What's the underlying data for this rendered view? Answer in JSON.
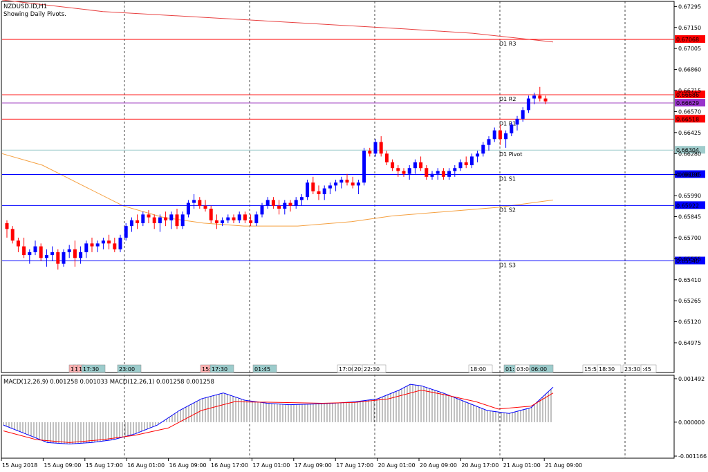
{
  "header": {
    "symbol": "NZDUSD.ID,H1",
    "subtitle": "Showing Daily Pivots."
  },
  "chart_data": {
    "type": "candlestick",
    "symbol": "NZDUSD.ID",
    "timeframe": "H1",
    "price_axis": {
      "range": [
        0.6477,
        0.6733
      ],
      "ticks": [
        "0.67295",
        "0.67150",
        "0.67005",
        "0.66860",
        "0.66715",
        "0.66570",
        "0.66425",
        "0.66280",
        "0.66135",
        "0.65990",
        "0.65845",
        "0.65700",
        "0.65555",
        "0.65410",
        "0.65265",
        "0.65120",
        "0.64975"
      ]
    },
    "pivots": [
      {
        "label": "D1 R3",
        "price": 0.67068,
        "value_text": "0.67068",
        "color": "#ff0000",
        "tag_bg": "#ff0000"
      },
      {
        "label": "D1 R2",
        "price": 0.66686,
        "value_text": "0.66686",
        "color": "#ff0000",
        "tag_bg": "#ff0000"
      },
      {
        "label": "",
        "price": 0.66629,
        "value_text": "0.66629",
        "color": "#a040c0",
        "tag_bg": "#9933cc"
      },
      {
        "label": "D1 R1",
        "price": 0.66518,
        "value_text": "0.66518",
        "color": "#ff0000",
        "tag_bg": "#ff0000"
      },
      {
        "label": "D1 Pivot",
        "price": 0.66304,
        "value_text": "0.66304",
        "color": "#9ccccc",
        "tag_bg": "#a0cccc"
      },
      {
        "label": "D1 S1",
        "price": 0.66136,
        "value_text": "0.66136",
        "color": "#0000ff",
        "tag_bg": "#0000ff"
      },
      {
        "label": "D1 S2",
        "price": 0.65922,
        "value_text": "0.65922",
        "color": "#0000ff",
        "tag_bg": "#0000ff"
      },
      {
        "label": "D1 S3",
        "price": 0.6554,
        "value_text": "0.65540",
        "color": "#0000ff",
        "tag_bg": "#0000ff"
      }
    ],
    "moving_average_red": [
      [
        0.0,
        0.6734
      ],
      [
        0.15,
        0.6726
      ],
      [
        0.3,
        0.6722
      ],
      [
        0.45,
        0.6718
      ],
      [
        0.6,
        0.6714
      ],
      [
        0.7,
        0.6711
      ],
      [
        0.8,
        0.6706
      ],
      [
        0.82,
        0.6705
      ]
    ],
    "moving_average_orange": [
      [
        0.0,
        0.6628
      ],
      [
        0.06,
        0.662
      ],
      [
        0.12,
        0.6606
      ],
      [
        0.18,
        0.6592
      ],
      [
        0.24,
        0.6584
      ],
      [
        0.3,
        0.658
      ],
      [
        0.36,
        0.6578
      ],
      [
        0.44,
        0.6578
      ],
      [
        0.52,
        0.6581
      ],
      [
        0.58,
        0.6585
      ],
      [
        0.66,
        0.6588
      ],
      [
        0.74,
        0.6591
      ],
      [
        0.82,
        0.6596
      ]
    ],
    "candles": [
      [
        0.658,
        0.6582,
        0.657,
        0.6576
      ],
      [
        0.6576,
        0.6578,
        0.6566,
        0.6568
      ],
      [
        0.6568,
        0.657,
        0.656,
        0.6564
      ],
      [
        0.6564,
        0.657,
        0.6556,
        0.6558
      ],
      [
        0.6558,
        0.6562,
        0.6552,
        0.656
      ],
      [
        0.656,
        0.6568,
        0.6558,
        0.6564
      ],
      [
        0.6564,
        0.6566,
        0.6554,
        0.6556
      ],
      [
        0.6556,
        0.6562,
        0.655,
        0.6558
      ],
      [
        0.6558,
        0.6564,
        0.6554,
        0.656
      ],
      [
        0.656,
        0.6562,
        0.6548,
        0.6552
      ],
      [
        0.6552,
        0.6562,
        0.655,
        0.656
      ],
      [
        0.656,
        0.6565,
        0.6556,
        0.6562
      ],
      [
        0.6562,
        0.6568,
        0.655,
        0.6556
      ],
      [
        0.6556,
        0.6564,
        0.6552,
        0.656
      ],
      [
        0.656,
        0.6568,
        0.6556,
        0.6566
      ],
      [
        0.6566,
        0.657,
        0.656,
        0.6564
      ],
      [
        0.6564,
        0.6568,
        0.656,
        0.6566
      ],
      [
        0.6566,
        0.657,
        0.6562,
        0.6568
      ],
      [
        0.6568,
        0.6572,
        0.6562,
        0.6566
      ],
      [
        0.6566,
        0.657,
        0.656,
        0.6562
      ],
      [
        0.6562,
        0.6572,
        0.656,
        0.657
      ],
      [
        0.657,
        0.658,
        0.6568,
        0.6578
      ],
      [
        0.6578,
        0.6584,
        0.6574,
        0.6582
      ],
      [
        0.6582,
        0.6586,
        0.6576,
        0.658
      ],
      [
        0.658,
        0.6588,
        0.6578,
        0.6586
      ],
      [
        0.6586,
        0.6589,
        0.658,
        0.6584
      ],
      [
        0.6584,
        0.6586,
        0.6576,
        0.658
      ],
      [
        0.658,
        0.6586,
        0.6574,
        0.6584
      ],
      [
        0.6584,
        0.6588,
        0.6578,
        0.6582
      ],
      [
        0.6582,
        0.6588,
        0.6576,
        0.6586
      ],
      [
        0.6586,
        0.659,
        0.6576,
        0.6578
      ],
      [
        0.6578,
        0.6588,
        0.6576,
        0.6586
      ],
      [
        0.6586,
        0.6596,
        0.6584,
        0.6594
      ],
      [
        0.6594,
        0.66,
        0.659,
        0.6596
      ],
      [
        0.6596,
        0.6598,
        0.659,
        0.6592
      ],
      [
        0.6592,
        0.6596,
        0.6588,
        0.659
      ],
      [
        0.659,
        0.6592,
        0.658,
        0.6582
      ],
      [
        0.6582,
        0.6586,
        0.6576,
        0.658
      ],
      [
        0.658,
        0.6584,
        0.6578,
        0.6582
      ],
      [
        0.6582,
        0.6586,
        0.658,
        0.6584
      ],
      [
        0.6584,
        0.6586,
        0.658,
        0.6582
      ],
      [
        0.6582,
        0.6588,
        0.658,
        0.6586
      ],
      [
        0.6586,
        0.6588,
        0.658,
        0.6582
      ],
      [
        0.6582,
        0.6586,
        0.6578,
        0.658
      ],
      [
        0.658,
        0.6588,
        0.6578,
        0.6586
      ],
      [
        0.6586,
        0.6594,
        0.6584,
        0.6592
      ],
      [
        0.6592,
        0.6598,
        0.659,
        0.6596
      ],
      [
        0.6596,
        0.6598,
        0.659,
        0.6592
      ],
      [
        0.6592,
        0.6596,
        0.6586,
        0.659
      ],
      [
        0.659,
        0.6596,
        0.6586,
        0.6594
      ],
      [
        0.6594,
        0.6596,
        0.6588,
        0.6592
      ],
      [
        0.6592,
        0.6598,
        0.659,
        0.6596
      ],
      [
        0.6596,
        0.66,
        0.6592,
        0.6598
      ],
      [
        0.6598,
        0.661,
        0.6596,
        0.6608
      ],
      [
        0.6608,
        0.6612,
        0.66,
        0.6602
      ],
      [
        0.6602,
        0.6606,
        0.6596,
        0.66
      ],
      [
        0.66,
        0.6606,
        0.6596,
        0.6604
      ],
      [
        0.6604,
        0.6608,
        0.66,
        0.6606
      ],
      [
        0.6606,
        0.661,
        0.6602,
        0.6608
      ],
      [
        0.6608,
        0.6612,
        0.6604,
        0.661
      ],
      [
        0.661,
        0.6614,
        0.6606,
        0.6608
      ],
      [
        0.6608,
        0.6612,
        0.6604,
        0.6606
      ],
      [
        0.6606,
        0.661,
        0.66,
        0.6608
      ],
      [
        0.6608,
        0.6632,
        0.6606,
        0.663
      ],
      [
        0.663,
        0.6632,
        0.6626,
        0.6628
      ],
      [
        0.6628,
        0.6638,
        0.6626,
        0.6636
      ],
      [
        0.6636,
        0.664,
        0.6626,
        0.6628
      ],
      [
        0.6628,
        0.663,
        0.662,
        0.6622
      ],
      [
        0.6622,
        0.6624,
        0.6616,
        0.6618
      ],
      [
        0.6618,
        0.662,
        0.6612,
        0.6616
      ],
      [
        0.6616,
        0.6618,
        0.6612,
        0.6614
      ],
      [
        0.6614,
        0.662,
        0.661,
        0.6618
      ],
      [
        0.6618,
        0.6624,
        0.6614,
        0.6622
      ],
      [
        0.6622,
        0.6626,
        0.6616,
        0.6618
      ],
      [
        0.6618,
        0.662,
        0.661,
        0.6612
      ],
      [
        0.6612,
        0.6616,
        0.661,
        0.6614
      ],
      [
        0.6614,
        0.6618,
        0.661,
        0.6616
      ],
      [
        0.6616,
        0.6618,
        0.661,
        0.6612
      ],
      [
        0.6612,
        0.6618,
        0.661,
        0.6616
      ],
      [
        0.6616,
        0.662,
        0.6612,
        0.6618
      ],
      [
        0.6618,
        0.6624,
        0.6616,
        0.6622
      ],
      [
        0.6622,
        0.6626,
        0.6618,
        0.662
      ],
      [
        0.662,
        0.6628,
        0.6618,
        0.6626
      ],
      [
        0.6626,
        0.663,
        0.6622,
        0.6628
      ],
      [
        0.6628,
        0.6636,
        0.6626,
        0.6634
      ],
      [
        0.6634,
        0.664,
        0.663,
        0.6638
      ],
      [
        0.6638,
        0.6646,
        0.6636,
        0.6644
      ],
      [
        0.6644,
        0.6648,
        0.6634,
        0.6638
      ],
      [
        0.6638,
        0.6644,
        0.6632,
        0.6642
      ],
      [
        0.6642,
        0.665,
        0.664,
        0.6648
      ],
      [
        0.6648,
        0.6654,
        0.6644,
        0.6652
      ],
      [
        0.6652,
        0.666,
        0.665,
        0.6658
      ],
      [
        0.6658,
        0.6668,
        0.6656,
        0.6666
      ],
      [
        0.6666,
        0.667,
        0.6662,
        0.6668
      ],
      [
        0.6668,
        0.6674,
        0.6664,
        0.6666
      ],
      [
        0.6666,
        0.6668,
        0.6662,
        0.6664
      ]
    ],
    "up_color": "#0000ff",
    "down_color": "#ff0000",
    "time_labels": [
      "15 Aug 2018",
      "15 Aug 09:00",
      "15 Aug 17:00",
      "16 Aug 01:00",
      "16 Aug 09:00",
      "16 Aug 17:00",
      "17 Aug 01:00",
      "17 Aug 09:00",
      "17 Aug 17:00",
      "20 Aug 01:00",
      "20 Aug 09:00",
      "20 Aug 17:00",
      "21 Aug 01:00",
      "21 Aug 09:00"
    ],
    "event_tags": [
      {
        "text": "1",
        "color": "#ffb0b0"
      },
      {
        "text": "1",
        "color": "#ffb0b0"
      },
      {
        "text": "1",
        "color": "#ffb0b0"
      },
      {
        "text": "17:30",
        "color": "#9ccccc"
      },
      {
        "text": "23:00",
        "color": "#9ccccc"
      },
      {
        "text": "15:",
        "color": "#ffb0b0"
      },
      {
        "text": "17:30",
        "color": "#9ccccc"
      },
      {
        "text": "01:45",
        "color": "#9ccccc"
      },
      {
        "text": "17:00",
        "color": "#ffffff"
      },
      {
        "text": "20:",
        "color": "#ffffff"
      },
      {
        "text": "22:30",
        "color": "#ffffff"
      },
      {
        "text": "18:00",
        "color": "#ffffff"
      },
      {
        "text": "01:",
        "color": "#9ccccc"
      },
      {
        "text": "03:00",
        "color": "#ffffff"
      },
      {
        "text": "06:00",
        "color": "#9ccccc"
      },
      {
        "text": "15:5",
        "color": "#ffffff"
      },
      {
        "text": "18:30",
        "color": "#ffffff"
      },
      {
        "text": "23:30",
        "color": "#ffffff"
      },
      {
        "text": ":45",
        "color": "#ffffff"
      }
    ],
    "macd": {
      "label": "MACD(12,26,9) 0.001258 0.001033 MACD(12,26,1) 0.001258 0.001258",
      "axis_ticks": [
        "0.001492",
        "0.000000",
        "-0.001166"
      ],
      "range": [
        -0.001166,
        0.001492
      ],
      "blue": [
        [
          0,
          -0.0001
        ],
        [
          0.04,
          -0.0004
        ],
        [
          0.08,
          -0.0007
        ],
        [
          0.12,
          -0.00075
        ],
        [
          0.16,
          -0.0007
        ],
        [
          0.2,
          -0.0006
        ],
        [
          0.24,
          -0.0004
        ],
        [
          0.28,
          -0.0001
        ],
        [
          0.32,
          0.0004
        ],
        [
          0.36,
          0.0008
        ],
        [
          0.4,
          0.001
        ],
        [
          0.44,
          0.00075
        ],
        [
          0.48,
          0.00065
        ],
        [
          0.52,
          0.0006
        ],
        [
          0.56,
          0.00062
        ],
        [
          0.6,
          0.00065
        ],
        [
          0.64,
          0.0007
        ],
        [
          0.68,
          0.0008
        ],
        [
          0.72,
          0.0011
        ],
        [
          0.74,
          0.0013
        ],
        [
          0.76,
          0.00125
        ],
        [
          0.8,
          0.001
        ],
        [
          0.84,
          0.0007
        ],
        [
          0.88,
          0.0004
        ],
        [
          0.92,
          0.0003
        ],
        [
          0.96,
          0.0005
        ],
        [
          1.0,
          0.0012
        ]
      ],
      "red": [
        [
          0,
          -0.0003
        ],
        [
          0.06,
          -0.0006
        ],
        [
          0.12,
          -0.0007
        ],
        [
          0.18,
          -0.0006
        ],
        [
          0.24,
          -0.00045
        ],
        [
          0.3,
          -0.0002
        ],
        [
          0.36,
          0.0004
        ],
        [
          0.42,
          0.0007
        ],
        [
          0.5,
          0.00068
        ],
        [
          0.58,
          0.00065
        ],
        [
          0.64,
          0.00068
        ],
        [
          0.7,
          0.0008
        ],
        [
          0.76,
          0.0011
        ],
        [
          0.8,
          0.00095
        ],
        [
          0.86,
          0.0007
        ],
        [
          0.9,
          0.00045
        ],
        [
          0.96,
          0.00055
        ],
        [
          1.0,
          0.001
        ]
      ]
    }
  }
}
